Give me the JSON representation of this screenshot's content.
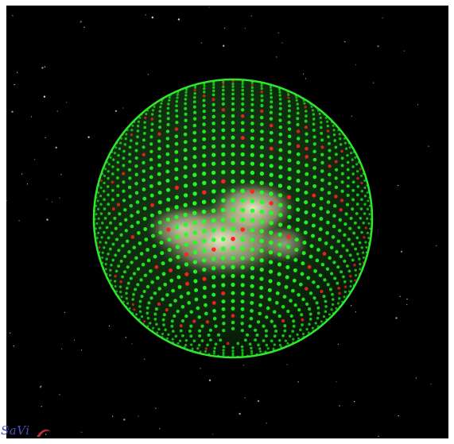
{
  "app": {
    "logo_text": "SaVi"
  },
  "scene": {
    "description_icon": "globe-satellite-coverage",
    "background_color": "#000000",
    "coverage_color": "#22ff22",
    "overlap_color": "#ff2222",
    "earth_color": "#e8e4c8"
  }
}
